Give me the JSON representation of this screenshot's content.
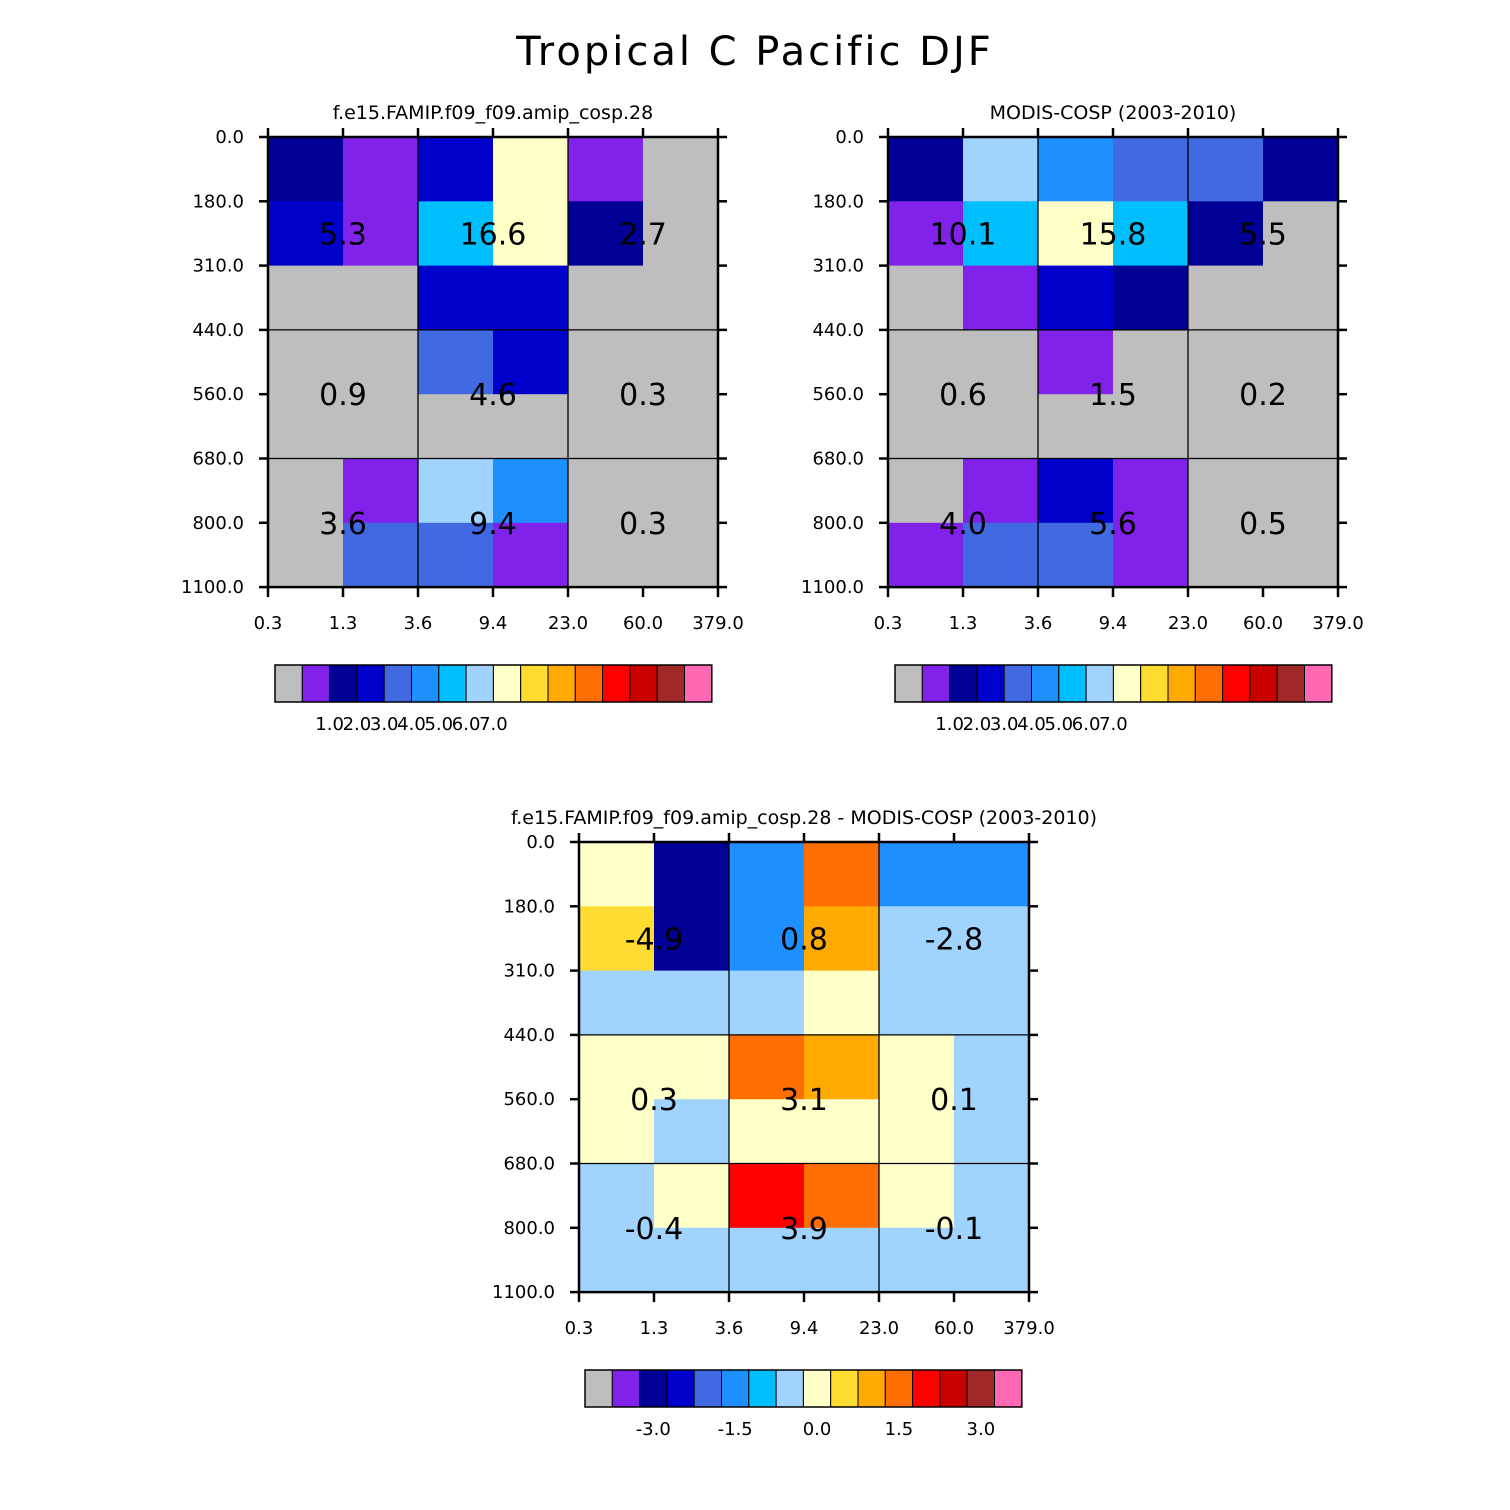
{
  "title": "Tropical C Pacific DJF",
  "colors": {
    "missing": "#bebebe",
    "palette": [
      "#bebebe",
      "#8022ea",
      "#000096",
      "#0000cd",
      "#4169e1",
      "#1e8fff",
      "#00bfff",
      "#a1d3ff",
      "#ffffc8",
      "#ffdc32",
      "#ffaa00",
      "#ff6e00",
      "#ff0000",
      "#c80000",
      "#a02828",
      "#ff69b4"
    ]
  },
  "chart_data": [
    {
      "type": "heatmap",
      "title": "f.e15.FAMIP.f09_f09.amip_cosp.28",
      "x_ticks": [
        "0.3",
        "1.3",
        "3.6",
        "9.4",
        "23.0",
        "60.0",
        "379.0"
      ],
      "y_ticks": [
        "0.0",
        "180.0",
        "310.0",
        "440.0",
        "560.0",
        "680.0",
        "800.0",
        "1100.0"
      ],
      "cells": [
        [
          2,
          1,
          3,
          8,
          1,
          0
        ],
        [
          3,
          1,
          6,
          8,
          2,
          0
        ],
        [
          0,
          0,
          3,
          3,
          0,
          0
        ],
        [
          0,
          0,
          4,
          3,
          0,
          0
        ],
        [
          0,
          0,
          0,
          0,
          0,
          0
        ],
        [
          0,
          1,
          7,
          5,
          0,
          0
        ],
        [
          0,
          4,
          4,
          1,
          0,
          0
        ]
      ],
      "group_totals": [
        [
          "5.3",
          "16.6",
          "2.7"
        ],
        [
          "0.9",
          "4.6",
          "0.3"
        ],
        [
          "3.6",
          "9.4",
          "0.3"
        ]
      ],
      "colorbar": {
        "labels": [
          "1.0",
          "2.0",
          "3.0",
          "4.0",
          "5.0",
          "6.0",
          "7.0"
        ]
      }
    },
    {
      "type": "heatmap",
      "title": "MODIS-COSP (2003-2010)",
      "x_ticks": [
        "0.3",
        "1.3",
        "3.6",
        "9.4",
        "23.0",
        "60.0",
        "379.0"
      ],
      "y_ticks": [
        "0.0",
        "180.0",
        "310.0",
        "440.0",
        "560.0",
        "680.0",
        "800.0",
        "1100.0"
      ],
      "cells": [
        [
          2,
          7,
          5,
          4,
          4,
          2
        ],
        [
          1,
          6,
          8,
          6,
          2,
          0
        ],
        [
          0,
          1,
          3,
          2,
          0,
          0
        ],
        [
          0,
          0,
          1,
          0,
          0,
          0
        ],
        [
          0,
          0,
          0,
          0,
          0,
          0
        ],
        [
          0,
          1,
          3,
          1,
          0,
          0
        ],
        [
          1,
          4,
          4,
          1,
          0,
          0
        ]
      ],
      "group_totals": [
        [
          "10.1",
          "15.8",
          "5.5"
        ],
        [
          "0.6",
          "1.5",
          "0.2"
        ],
        [
          "4.0",
          "5.6",
          "0.5"
        ]
      ],
      "colorbar": {
        "labels": [
          "1.0",
          "2.0",
          "3.0",
          "4.0",
          "5.0",
          "6.0",
          "7.0"
        ]
      }
    },
    {
      "type": "heatmap",
      "title": "f.e15.FAMIP.f09_f09.amip_cosp.28 - MODIS-COSP (2003-2010)",
      "x_ticks": [
        "0.3",
        "1.3",
        "3.6",
        "9.4",
        "23.0",
        "60.0",
        "379.0"
      ],
      "y_ticks": [
        "0.0",
        "180.0",
        "310.0",
        "440.0",
        "560.0",
        "680.0",
        "800.0",
        "1100.0"
      ],
      "cells": [
        [
          8,
          2,
          5,
          11,
          5,
          5
        ],
        [
          9,
          2,
          5,
          10,
          7,
          7
        ],
        [
          7,
          7,
          7,
          8,
          7,
          7
        ],
        [
          8,
          8,
          11,
          10,
          8,
          7
        ],
        [
          8,
          7,
          8,
          8,
          8,
          7
        ],
        [
          7,
          8,
          12,
          11,
          8,
          7
        ],
        [
          7,
          7,
          7,
          7,
          7,
          7
        ]
      ],
      "group_totals": [
        [
          "-4.9",
          "0.8",
          "-2.8"
        ],
        [
          "0.3",
          "3.1",
          "0.1"
        ],
        [
          "-0.4",
          "3.9",
          "-0.1"
        ]
      ],
      "colorbar": {
        "labels": [
          "-3.0",
          "-1.5",
          "0.0",
          "1.5",
          "3.0"
        ]
      }
    }
  ]
}
